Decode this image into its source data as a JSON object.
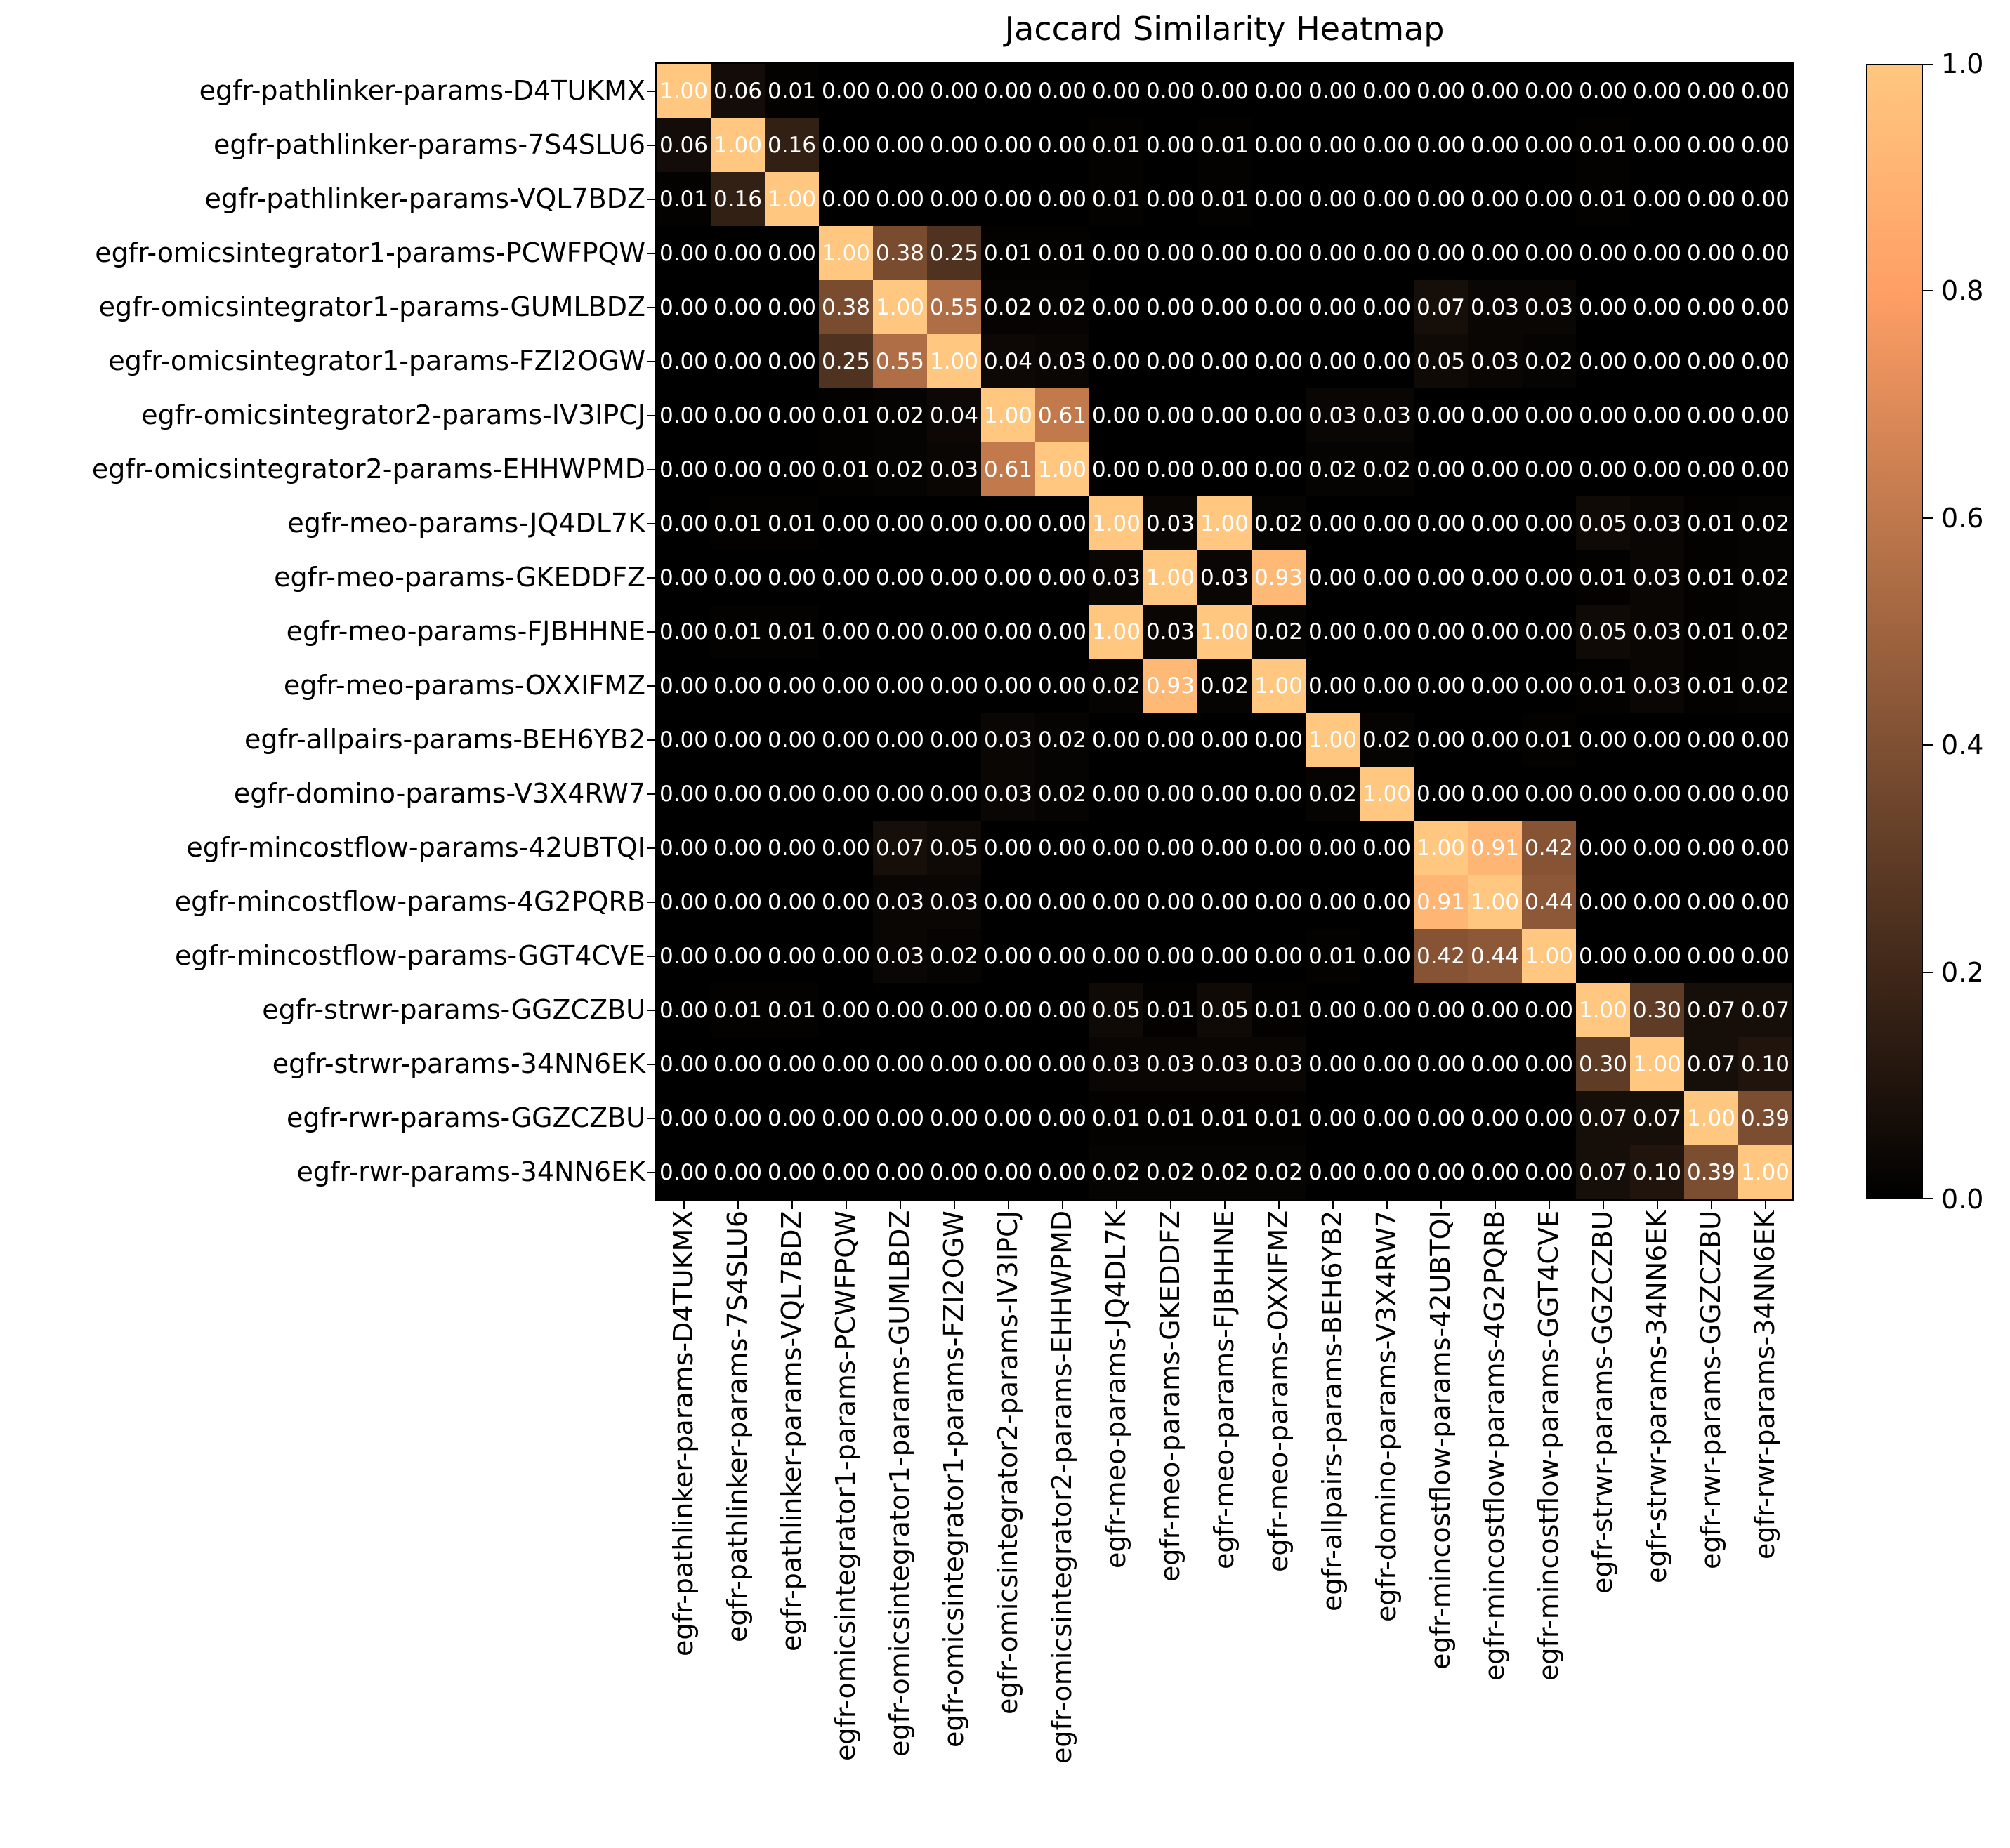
{
  "chart_data": {
    "type": "heatmap",
    "title": "Jaccard Similarity Heatmap",
    "colormap": "copper",
    "vmin": 0.0,
    "vmax": 1.0,
    "value_decimals": 2,
    "annotation_color": "#ffffff",
    "grid": false,
    "legend_position": "colorbar-right",
    "colorbar_ticks": [
      1.0,
      0.8,
      0.6,
      0.4,
      0.2,
      0.0
    ],
    "labels": [
      "egfr-pathlinker-params-D4TUKMX",
      "egfr-pathlinker-params-7S4SLU6",
      "egfr-pathlinker-params-VQL7BDZ",
      "egfr-omicsintegrator1-params-PCWFPQW",
      "egfr-omicsintegrator1-params-GUMLBDZ",
      "egfr-omicsintegrator1-params-FZI2OGW",
      "egfr-omicsintegrator2-params-IV3IPCJ",
      "egfr-omicsintegrator2-params-EHHWPMD",
      "egfr-meo-params-JQ4DL7K",
      "egfr-meo-params-GKEDDFZ",
      "egfr-meo-params-FJBHHNE",
      "egfr-meo-params-OXXIFMZ",
      "egfr-allpairs-params-BEH6YB2",
      "egfr-domino-params-V3X4RW7",
      "egfr-mincostflow-params-42UBTQI",
      "egfr-mincostflow-params-4G2PQRB",
      "egfr-mincostflow-params-GGT4CVE",
      "egfr-strwr-params-GGZCZBU",
      "egfr-strwr-params-34NN6EK",
      "egfr-rwr-params-GGZCZBU",
      "egfr-rwr-params-34NN6EK"
    ],
    "matrix": [
      [
        1.0,
        0.06,
        0.01,
        0.0,
        0.0,
        0.0,
        0.0,
        0.0,
        0.0,
        0.0,
        0.0,
        0.0,
        0.0,
        0.0,
        0.0,
        0.0,
        0.0,
        0.0,
        0.0,
        0.0,
        0.0
      ],
      [
        0.06,
        1.0,
        0.16,
        0.0,
        0.0,
        0.0,
        0.0,
        0.0,
        0.01,
        0.0,
        0.01,
        0.0,
        0.0,
        0.0,
        0.0,
        0.0,
        0.0,
        0.01,
        0.0,
        0.0,
        0.0
      ],
      [
        0.01,
        0.16,
        1.0,
        0.0,
        0.0,
        0.0,
        0.0,
        0.0,
        0.01,
        0.0,
        0.01,
        0.0,
        0.0,
        0.0,
        0.0,
        0.0,
        0.0,
        0.01,
        0.0,
        0.0,
        0.0
      ],
      [
        0.0,
        0.0,
        0.0,
        1.0,
        0.38,
        0.25,
        0.01,
        0.01,
        0.0,
        0.0,
        0.0,
        0.0,
        0.0,
        0.0,
        0.0,
        0.0,
        0.0,
        0.0,
        0.0,
        0.0,
        0.0
      ],
      [
        0.0,
        0.0,
        0.0,
        0.38,
        1.0,
        0.55,
        0.02,
        0.02,
        0.0,
        0.0,
        0.0,
        0.0,
        0.0,
        0.0,
        0.07,
        0.03,
        0.03,
        0.0,
        0.0,
        0.0,
        0.0
      ],
      [
        0.0,
        0.0,
        0.0,
        0.25,
        0.55,
        1.0,
        0.04,
        0.03,
        0.0,
        0.0,
        0.0,
        0.0,
        0.0,
        0.0,
        0.05,
        0.03,
        0.02,
        0.0,
        0.0,
        0.0,
        0.0
      ],
      [
        0.0,
        0.0,
        0.0,
        0.01,
        0.02,
        0.04,
        1.0,
        0.61,
        0.0,
        0.0,
        0.0,
        0.0,
        0.03,
        0.03,
        0.0,
        0.0,
        0.0,
        0.0,
        0.0,
        0.0,
        0.0
      ],
      [
        0.0,
        0.0,
        0.0,
        0.01,
        0.02,
        0.03,
        0.61,
        1.0,
        0.0,
        0.0,
        0.0,
        0.0,
        0.02,
        0.02,
        0.0,
        0.0,
        0.0,
        0.0,
        0.0,
        0.0,
        0.0
      ],
      [
        0.0,
        0.01,
        0.01,
        0.0,
        0.0,
        0.0,
        0.0,
        0.0,
        1.0,
        0.03,
        1.0,
        0.02,
        0.0,
        0.0,
        0.0,
        0.0,
        0.0,
        0.05,
        0.03,
        0.01,
        0.02
      ],
      [
        0.0,
        0.0,
        0.0,
        0.0,
        0.0,
        0.0,
        0.0,
        0.0,
        0.03,
        1.0,
        0.03,
        0.93,
        0.0,
        0.0,
        0.0,
        0.0,
        0.0,
        0.01,
        0.03,
        0.01,
        0.02
      ],
      [
        0.0,
        0.01,
        0.01,
        0.0,
        0.0,
        0.0,
        0.0,
        0.0,
        1.0,
        0.03,
        1.0,
        0.02,
        0.0,
        0.0,
        0.0,
        0.0,
        0.0,
        0.05,
        0.03,
        0.01,
        0.02
      ],
      [
        0.0,
        0.0,
        0.0,
        0.0,
        0.0,
        0.0,
        0.0,
        0.0,
        0.02,
        0.93,
        0.02,
        1.0,
        0.0,
        0.0,
        0.0,
        0.0,
        0.0,
        0.01,
        0.03,
        0.01,
        0.02
      ],
      [
        0.0,
        0.0,
        0.0,
        0.0,
        0.0,
        0.0,
        0.03,
        0.02,
        0.0,
        0.0,
        0.0,
        0.0,
        1.0,
        0.02,
        0.0,
        0.0,
        0.01,
        0.0,
        0.0,
        0.0,
        0.0
      ],
      [
        0.0,
        0.0,
        0.0,
        0.0,
        0.0,
        0.0,
        0.03,
        0.02,
        0.0,
        0.0,
        0.0,
        0.0,
        0.02,
        1.0,
        0.0,
        0.0,
        0.0,
        0.0,
        0.0,
        0.0,
        0.0
      ],
      [
        0.0,
        0.0,
        0.0,
        0.0,
        0.07,
        0.05,
        0.0,
        0.0,
        0.0,
        0.0,
        0.0,
        0.0,
        0.0,
        0.0,
        1.0,
        0.91,
        0.42,
        0.0,
        0.0,
        0.0,
        0.0
      ],
      [
        0.0,
        0.0,
        0.0,
        0.0,
        0.03,
        0.03,
        0.0,
        0.0,
        0.0,
        0.0,
        0.0,
        0.0,
        0.0,
        0.0,
        0.91,
        1.0,
        0.44,
        0.0,
        0.0,
        0.0,
        0.0
      ],
      [
        0.0,
        0.0,
        0.0,
        0.0,
        0.03,
        0.02,
        0.0,
        0.0,
        0.0,
        0.0,
        0.0,
        0.0,
        0.01,
        0.0,
        0.42,
        0.44,
        1.0,
        0.0,
        0.0,
        0.0,
        0.0
      ],
      [
        0.0,
        0.01,
        0.01,
        0.0,
        0.0,
        0.0,
        0.0,
        0.0,
        0.05,
        0.01,
        0.05,
        0.01,
        0.0,
        0.0,
        0.0,
        0.0,
        0.0,
        1.0,
        0.3,
        0.07,
        0.07
      ],
      [
        0.0,
        0.0,
        0.0,
        0.0,
        0.0,
        0.0,
        0.0,
        0.0,
        0.03,
        0.03,
        0.03,
        0.03,
        0.0,
        0.0,
        0.0,
        0.0,
        0.0,
        0.3,
        1.0,
        0.07,
        0.1
      ],
      [
        0.0,
        0.0,
        0.0,
        0.0,
        0.0,
        0.0,
        0.0,
        0.0,
        0.01,
        0.01,
        0.01,
        0.01,
        0.0,
        0.0,
        0.0,
        0.0,
        0.0,
        0.07,
        0.07,
        1.0,
        0.39
      ],
      [
        0.0,
        0.0,
        0.0,
        0.0,
        0.0,
        0.0,
        0.0,
        0.0,
        0.02,
        0.02,
        0.02,
        0.02,
        0.0,
        0.0,
        0.0,
        0.0,
        0.0,
        0.07,
        0.1,
        0.39,
        1.0
      ]
    ]
  }
}
